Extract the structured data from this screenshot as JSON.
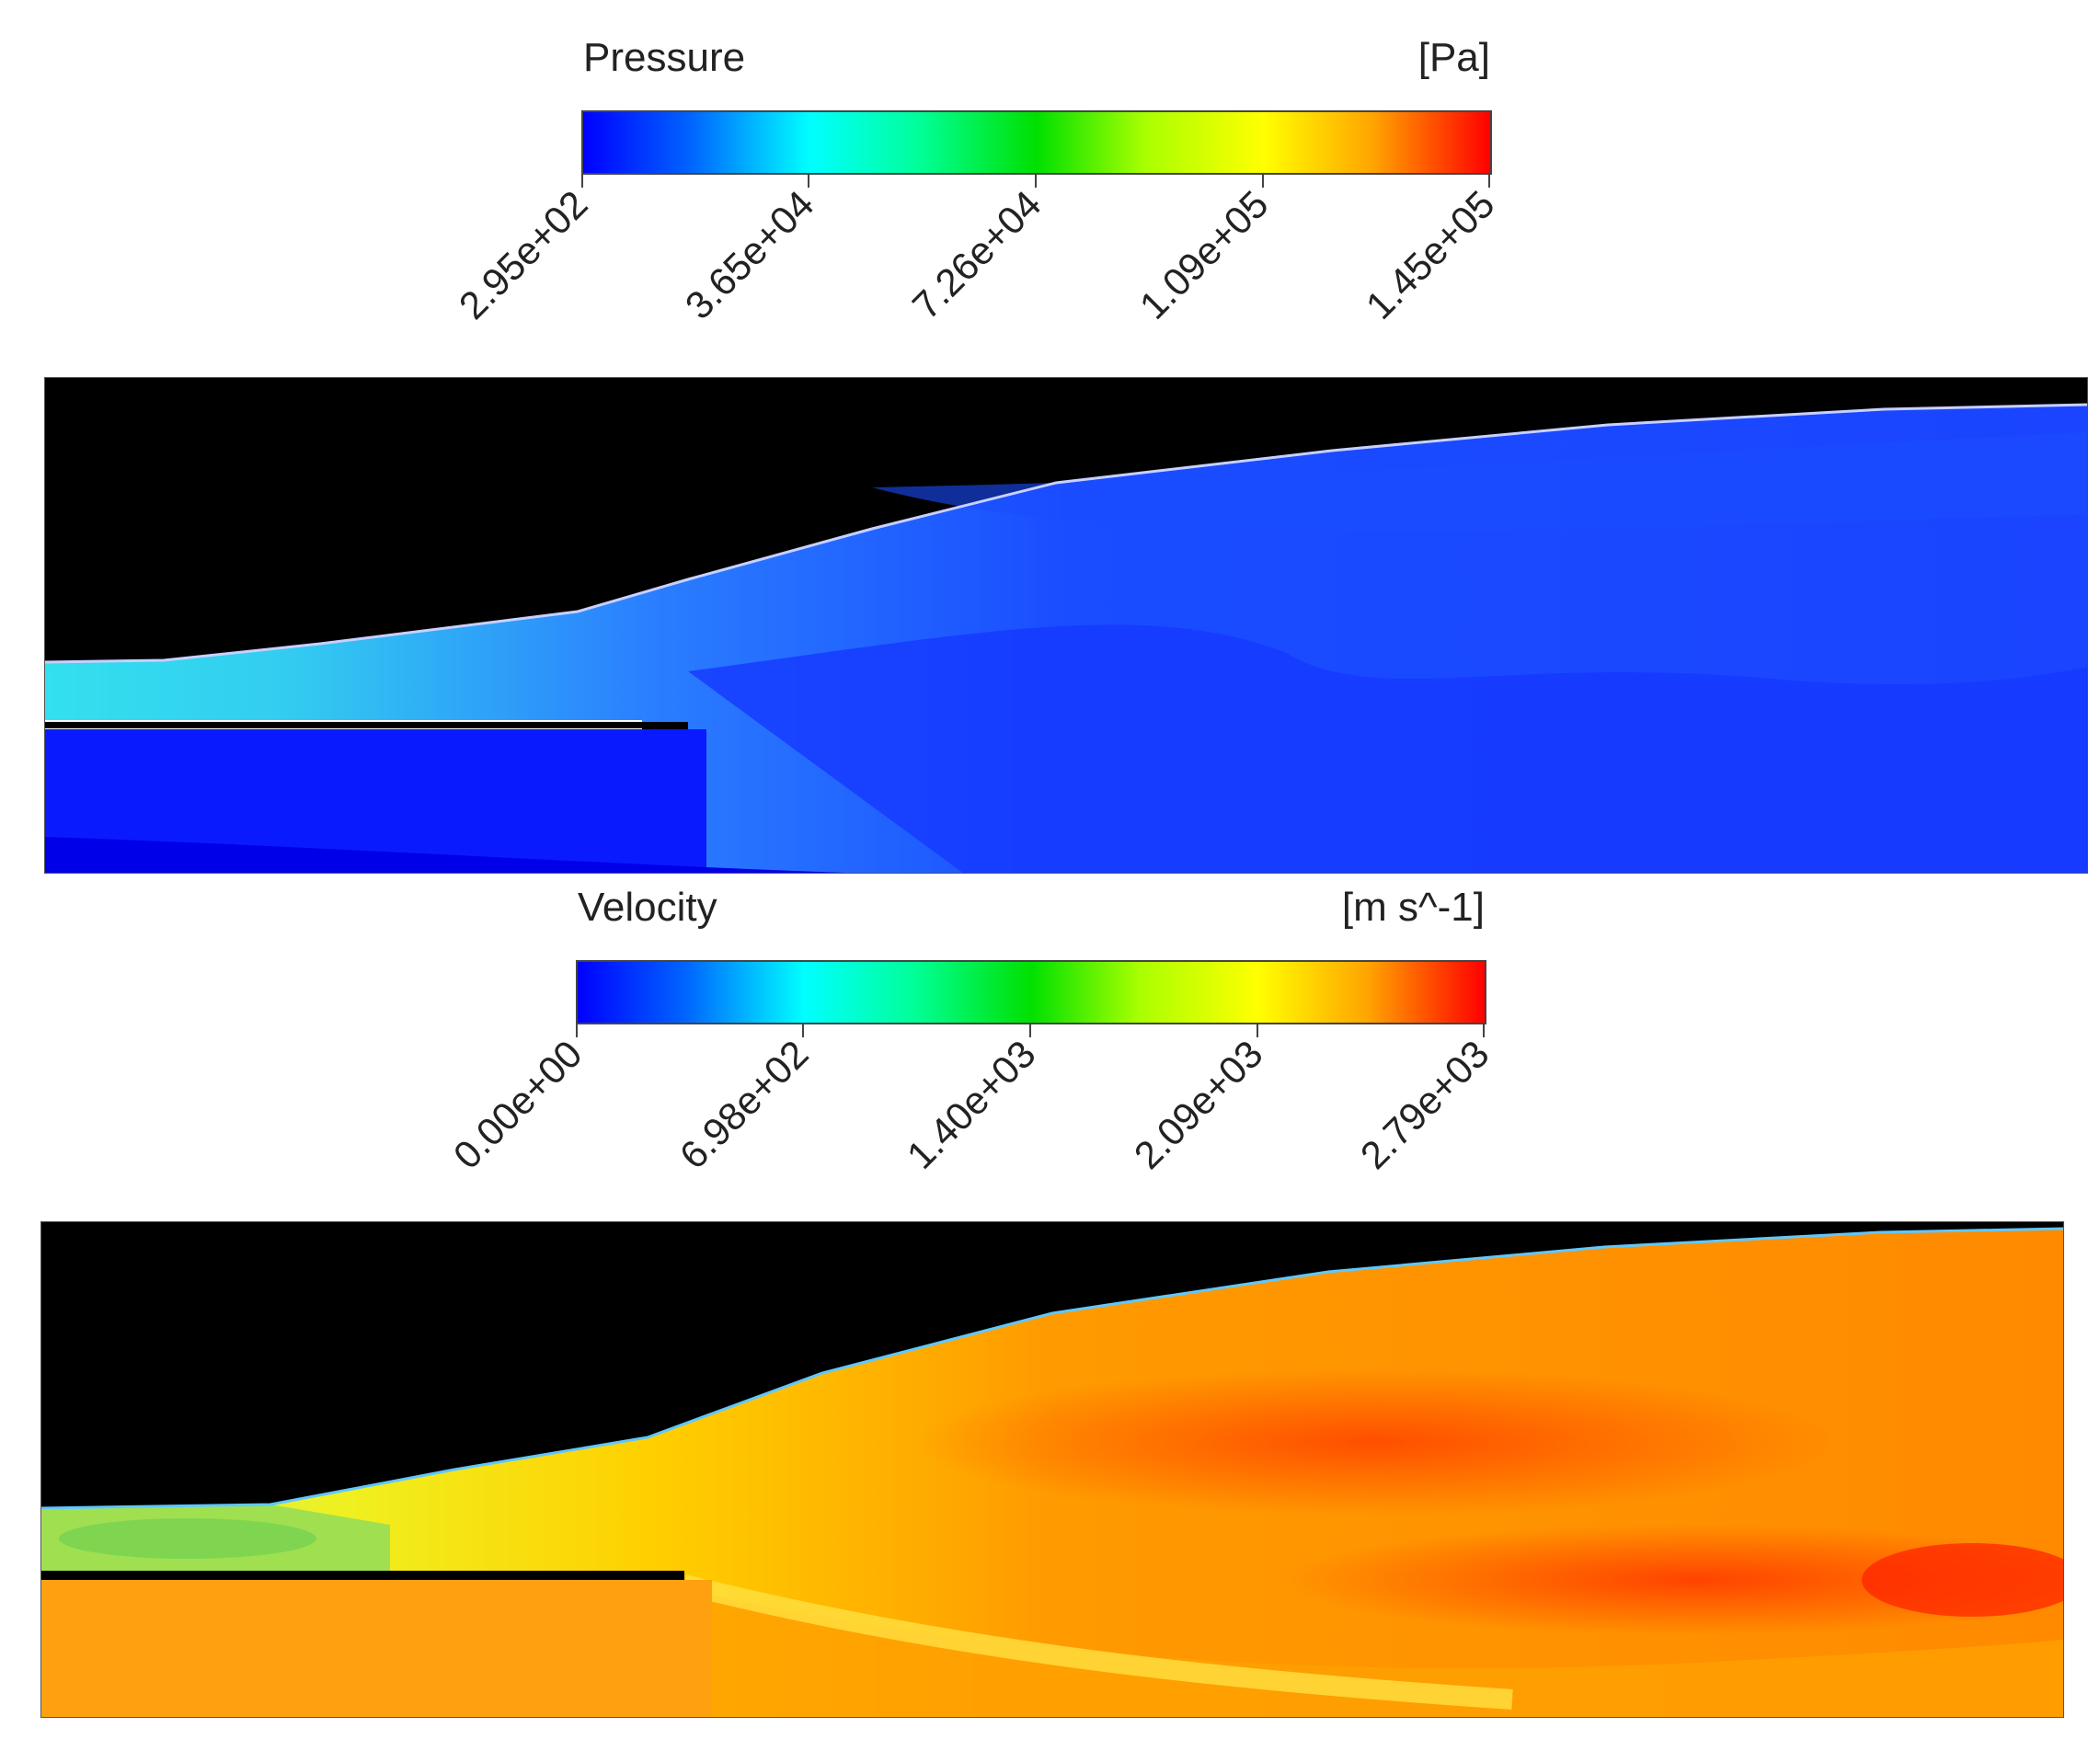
{
  "pressure": {
    "title": "Pressure",
    "unit": "[Pa]",
    "ticks": [
      "2.95e+02",
      "3.65e+04",
      "7.26e+04",
      "1.09e+05",
      "1.45e+05"
    ],
    "colormap": [
      "#0000ff",
      "#00ffff",
      "#00ff00",
      "#ffff00",
      "#ff0000"
    ]
  },
  "velocity": {
    "title": "Velocity",
    "unit": "[m s^-1]",
    "ticks": [
      "0.00e+00",
      "6.98e+02",
      "1.40e+03",
      "2.09e+03",
      "2.79e+03"
    ],
    "colormap": [
      "#0000ff",
      "#00ffff",
      "#00ff00",
      "#ffff00",
      "#ff0000"
    ]
  }
}
